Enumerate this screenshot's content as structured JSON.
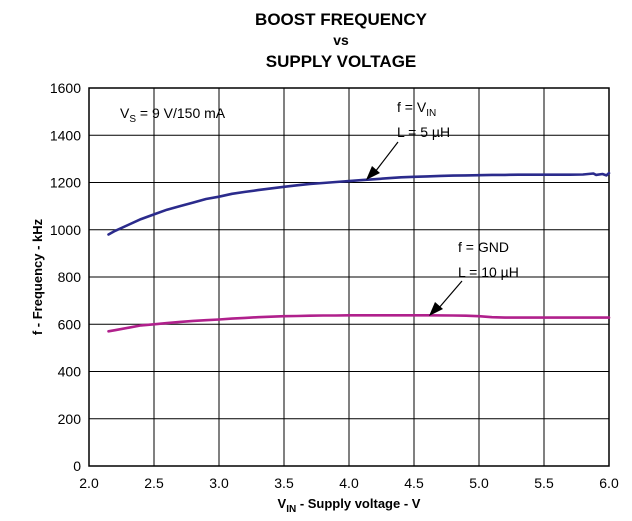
{
  "chart_data": {
    "type": "line",
    "title": [
      "BOOST FREQUENCY",
      "vs",
      "SUPPLY VOLTAGE"
    ],
    "xlabel": {
      "main": "V",
      "sub": "IN",
      "rest": " - Supply voltage - V"
    },
    "ylabel": "f - Frequency - kHz",
    "xlim": [
      2.0,
      6.0
    ],
    "ylim": [
      0,
      1600
    ],
    "x_ticks": [
      2.0,
      2.5,
      3.0,
      3.5,
      4.0,
      4.5,
      5.0,
      5.5,
      6.0
    ],
    "x_tick_labels": [
      "2.0",
      "2.5",
      "3.0",
      "3.5",
      "4.0",
      "4.5",
      "5.0",
      "5.5",
      "6.0"
    ],
    "y_ticks": [
      0,
      200,
      400,
      600,
      800,
      1000,
      1200,
      1400,
      1600
    ],
    "y_tick_labels": [
      "0",
      "200",
      "400",
      "600",
      "800",
      "1000",
      "1200",
      "1400",
      "1600"
    ],
    "grid": true,
    "series": [
      {
        "color": "#2b2b8c",
        "x": [
          2.15,
          2.2,
          2.3,
          2.4,
          2.5,
          2.6,
          2.7,
          2.8,
          2.9,
          3.0,
          3.1,
          3.2,
          3.3,
          3.4,
          3.5,
          3.6,
          3.7,
          3.8,
          3.9,
          4.0,
          4.1,
          4.2,
          4.3,
          4.4,
          4.5,
          4.6,
          4.7,
          4.8,
          4.9,
          5.0,
          5.1,
          5.2,
          5.3,
          5.4,
          5.5,
          5.6,
          5.7,
          5.8,
          5.88,
          5.9,
          5.95,
          5.98,
          6.0
        ],
        "y": [
          980,
          995,
          1020,
          1045,
          1065,
          1085,
          1100,
          1115,
          1130,
          1140,
          1152,
          1160,
          1168,
          1175,
          1182,
          1188,
          1194,
          1198,
          1202,
          1206,
          1210,
          1214,
          1218,
          1222,
          1224,
          1226,
          1228,
          1229,
          1230,
          1231,
          1232,
          1232,
          1233,
          1233,
          1233,
          1233,
          1233,
          1234,
          1238,
          1232,
          1236,
          1230,
          1240
        ]
      },
      {
        "color": "#b0208c",
        "x": [
          2.15,
          2.2,
          2.3,
          2.4,
          2.5,
          2.6,
          2.7,
          2.8,
          2.9,
          3.0,
          3.1,
          3.2,
          3.3,
          3.4,
          3.5,
          3.6,
          3.7,
          3.8,
          3.9,
          4.0,
          4.2,
          4.4,
          4.6,
          4.8,
          4.9,
          5.0,
          5.1,
          5.2,
          5.4,
          5.6,
          5.8,
          6.0
        ],
        "y": [
          570,
          575,
          585,
          595,
          600,
          605,
          610,
          614,
          617,
          620,
          624,
          627,
          630,
          632,
          634,
          635,
          636,
          637,
          637,
          638,
          638,
          638,
          638,
          637,
          636,
          634,
          630,
          628,
          628,
          628,
          628,
          628
        ]
      }
    ],
    "annotations": {
      "conditions": {
        "main": "V",
        "sub": "S",
        "rest": " = 9 V/150 mA"
      },
      "upper_line1": {
        "main": "f = V",
        "sub": "IN"
      },
      "upper_line2": "L = 5 µH",
      "lower_line1": "f = GND",
      "lower_line2": "L = 10 µH"
    }
  }
}
